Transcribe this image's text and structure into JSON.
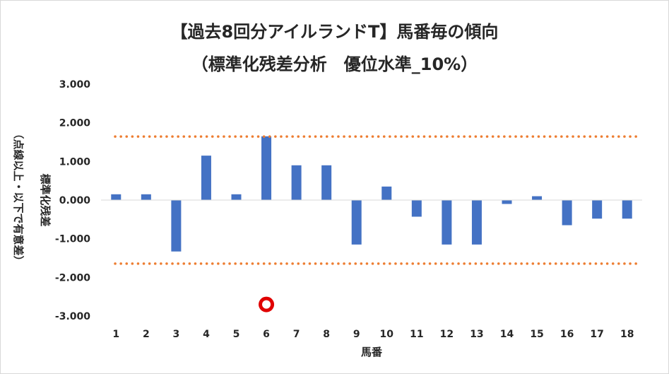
{
  "chart_data": {
    "type": "bar",
    "title": "【過去8回分アイルランドT】馬番毎の傾向",
    "subtitle": "（標準化残差分析　優位水準_10%）",
    "xlabel": "馬番",
    "ylabel_line1": "標準化残差",
    "ylabel_line2": "（点線以上・以下で有意差）",
    "categories": [
      "1",
      "2",
      "3",
      "4",
      "5",
      "6",
      "7",
      "8",
      "9",
      "10",
      "11",
      "12",
      "13",
      "14",
      "15",
      "16",
      "17",
      "18"
    ],
    "values": [
      0.15,
      0.15,
      -1.33,
      1.15,
      0.15,
      1.65,
      0.9,
      0.9,
      -1.15,
      0.35,
      -0.43,
      -1.15,
      -1.15,
      -0.1,
      0.1,
      -0.65,
      -0.48,
      -0.48
    ],
    "ylim": [
      -3,
      3
    ],
    "yticks": [
      "3.000",
      "2.000",
      "1.000",
      "0.000",
      "-1.000",
      "-2.000",
      "-3.000"
    ],
    "ytick_values": [
      3,
      2,
      1,
      0,
      -1,
      -2,
      -3
    ],
    "threshold_upper": 1.645,
    "threshold_lower": -1.645,
    "marker": {
      "category": "6",
      "value": -2.7
    },
    "colors": {
      "bar": "#4472C4",
      "threshold": "#ED7D31",
      "marker_ring": "#E00000",
      "axis": "#D9D9D9"
    },
    "grid": false,
    "legend": "none"
  }
}
